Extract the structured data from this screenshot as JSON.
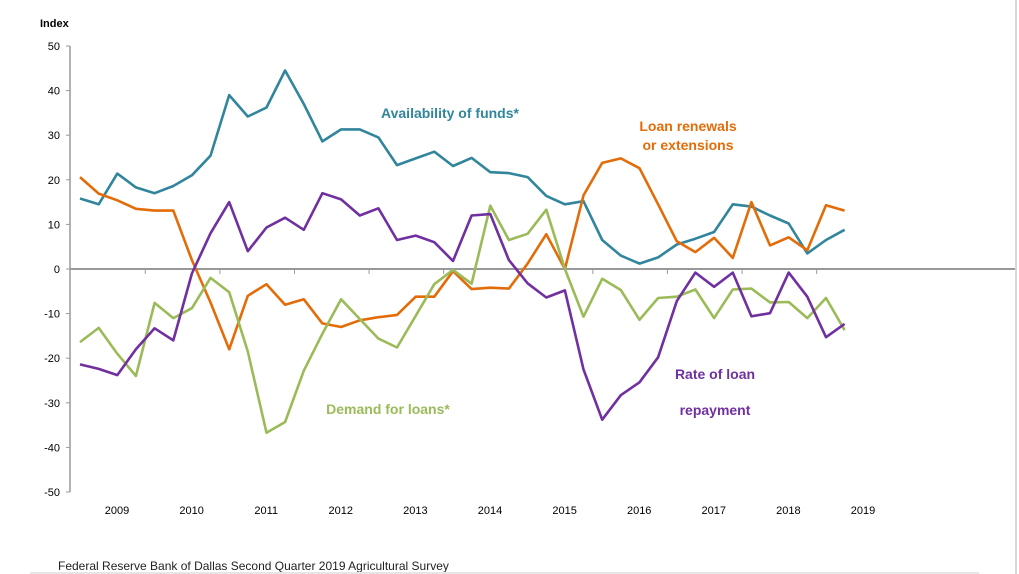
{
  "chart_data": {
    "type": "line",
    "ylabel": "Index",
    "ylim": [
      -50,
      50
    ],
    "yticks": [
      50,
      40,
      30,
      20,
      10,
      0,
      -10,
      -20,
      -30,
      -40,
      -50
    ],
    "year_labels": [
      "2009",
      "2010",
      "2011",
      "2012",
      "2013",
      "2014",
      "2015",
      "2016",
      "2017",
      "2018",
      "2019"
    ],
    "x_start": "2009 Q1",
    "x_end": "2019 Q2",
    "frequency": "quarterly",
    "grid": false,
    "series": [
      {
        "name": "Availability of funds*",
        "label_lines": [
          "Availability of funds*"
        ],
        "color": "#31859C",
        "values": [
          15.8,
          14.5,
          21.4,
          18.3,
          17,
          18.6,
          21,
          25.4,
          39,
          34.2,
          36.2,
          44.5,
          37,
          28.6,
          31.3,
          31.3,
          29.5,
          23.3,
          24.8,
          26.3,
          23.1,
          24.9,
          21.7,
          21.5,
          20.6,
          16.4,
          14.5,
          15.2,
          6.5,
          3,
          1.2,
          2.6,
          5.5,
          6.8,
          8.3,
          14.5,
          14,
          12,
          10.2,
          3.5,
          6.5,
          8.8
        ]
      },
      {
        "name": "Loan renewals or extensions",
        "label_lines": [
          "Loan renewals",
          "or extensions"
        ],
        "color": "#E36C09",
        "values": [
          20.6,
          16.9,
          15.4,
          13.5,
          13.1,
          13.1,
          2,
          -7.5,
          -18,
          -6,
          -3.4,
          -8,
          -6.8,
          -12.2,
          -13,
          -11.5,
          -10.8,
          -10.3,
          -6.2,
          -6.2,
          -0.5,
          -4.5,
          -4.2,
          -4.4,
          1.2,
          7.8,
          0,
          16.5,
          23.8,
          24.8,
          22.6,
          14.5,
          6.2,
          3.8,
          7,
          2.5,
          15,
          5.3,
          7.1,
          4.2,
          14.3,
          13.1
        ]
      },
      {
        "name": "Demand for loans*",
        "label_lines": [
          "Demand for loans*"
        ],
        "color": "#9BBB59",
        "values": [
          -16.4,
          -13.2,
          -19,
          -24,
          -7.6,
          -11,
          -8.8,
          -2,
          -5.2,
          -18.5,
          -36.7,
          -34.3,
          -22.8,
          -14.5,
          -6.8,
          -11.2,
          -15.6,
          -17.6,
          -10.5,
          -3.4,
          -0.2,
          -3.3,
          14.2,
          6.5,
          7.9,
          13.3,
          0,
          -10.7,
          -2.2,
          -4.7,
          -11.4,
          -6.5,
          -6.2,
          -4.6,
          -11,
          -4.6,
          -4.4,
          -7.5,
          -7.4,
          -11,
          -6.5,
          -13.7
        ]
      },
      {
        "name": "Rate of loan repayment",
        "label_lines": [
          "Rate of loan",
          "repayment"
        ],
        "color": "#7030A0",
        "values": [
          -21.4,
          -22.4,
          -23.8,
          -18,
          -13.3,
          -16,
          -1,
          8,
          15,
          4,
          9.3,
          11.5,
          8.8,
          17,
          15.6,
          12,
          13.6,
          6.5,
          7.5,
          6,
          1.8,
          12,
          12.3,
          2,
          -3.2,
          -6.4,
          -4.8,
          -22.5,
          -33.8,
          -28.3,
          -25.4,
          -19.8,
          -7.2,
          -0.8,
          -4,
          -0.8,
          -10.6,
          -9.9,
          -0.8,
          -6.2,
          -15.3,
          -12.3
        ]
      }
    ]
  },
  "footer": "Federal Reserve Bank of Dallas Second Quarter  2019 Agricultural Survey"
}
